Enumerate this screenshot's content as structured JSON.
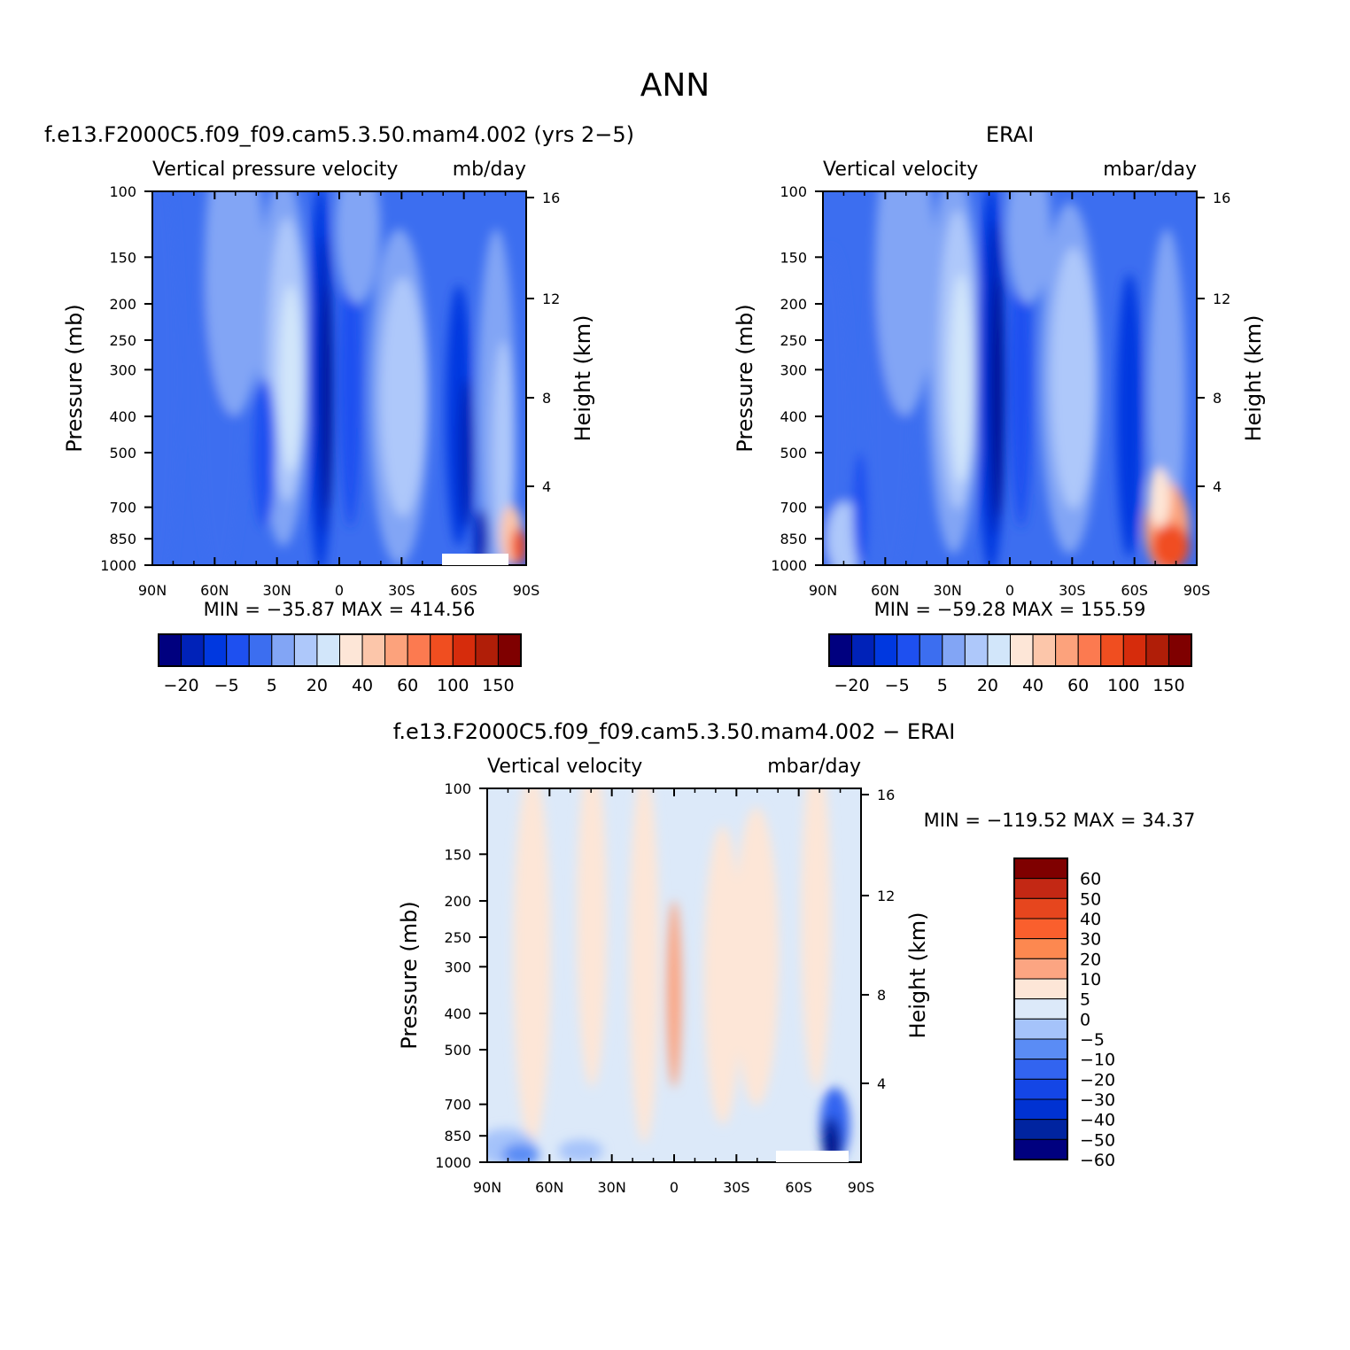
{
  "page": {
    "title": "ANN"
  },
  "colors": {
    "main_cmap": [
      "#00007f",
      "#0022b8",
      "#0038e0",
      "#1e50f0",
      "#3c6ef0",
      "#82a5f5",
      "#aec8fa",
      "#d2e6fa",
      "#fde6d7",
      "#fcc6aa",
      "#fca27c",
      "#fc7a50",
      "#f04e20",
      "#d62c0c",
      "#b01e08",
      "#7f0000"
    ],
    "diff_cmap": [
      "#00007f",
      "#0024a0",
      "#0032d2",
      "#1446e6",
      "#3264f0",
      "#5a8cf5",
      "#a5c3fa",
      "#dce9f9",
      "#fde6d7",
      "#fca582",
      "#fd8850",
      "#fa5f2d",
      "#e6461e",
      "#c32814",
      "#7f0000"
    ]
  },
  "panels": {
    "model": {
      "title": "f.e13.F2000C5.f09_f09.cam5.3.50.mam4.002 (yrs 2−5)",
      "variable": "Vertical pressure velocity",
      "units": "mb/day",
      "y_label": "Pressure (mb)",
      "right_label": "Height (km)",
      "stats": "MIN = −35.87   MAX = 414.56"
    },
    "obs": {
      "title": "ERAI",
      "variable": "Vertical velocity",
      "units": "mbar/day",
      "y_label": "Pressure (mb)",
      "right_label": "Height (km)",
      "stats": "MIN = −59.28   MAX = 155.59"
    },
    "diff": {
      "title": "f.e13.F2000C5.f09_f09.cam5.3.50.mam4.002 − ERAI",
      "variable": "Vertical velocity",
      "units": "mbar/day",
      "y_label": "Pressure (mb)",
      "right_label": "Height (km)",
      "stats": "MIN = −119.52   MAX =   34.37"
    }
  },
  "chart_data": [
    {
      "type": "heatmap",
      "title": "f.e13.F2000C5.f09_f09.cam5.3.50.mam4.002 (yrs 2−5)",
      "subtitle": "Vertical pressure velocity",
      "units": "mb/day",
      "xlabel": "",
      "ylabel": "Pressure (mb)",
      "y2label": "Height (km)",
      "x_ticks": [
        "90N",
        "60N",
        "30N",
        "0",
        "30S",
        "60S",
        "90S"
      ],
      "xlim": [
        90,
        -90
      ],
      "y_ticks": [
        100,
        150,
        200,
        250,
        300,
        400,
        500,
        700,
        850,
        1000
      ],
      "ylim": [
        1000,
        100
      ],
      "y_scale": "log",
      "y2_ticks": [
        4,
        8,
        12,
        16
      ],
      "min": -35.87,
      "max": 414.56,
      "colorbar_labels": [
        "−20",
        "−5",
        "5",
        "20",
        "40",
        "60",
        "100",
        "150"
      ]
    },
    {
      "type": "heatmap",
      "title": "ERAI",
      "subtitle": "Vertical velocity",
      "units": "mbar/day",
      "xlabel": "",
      "ylabel": "Pressure (mb)",
      "y2label": "Height (km)",
      "x_ticks": [
        "90N",
        "60N",
        "30N",
        "0",
        "30S",
        "60S",
        "90S"
      ],
      "xlim": [
        90,
        -90
      ],
      "y_ticks": [
        100,
        150,
        200,
        250,
        300,
        400,
        500,
        700,
        850,
        1000
      ],
      "ylim": [
        1000,
        100
      ],
      "y_scale": "log",
      "y2_ticks": [
        4,
        8,
        12,
        16
      ],
      "min": -59.28,
      "max": 155.59,
      "colorbar_labels": [
        "−20",
        "−5",
        "5",
        "20",
        "40",
        "60",
        "100",
        "150"
      ]
    },
    {
      "type": "heatmap",
      "title": "f.e13.F2000C5.f09_f09.cam5.3.50.mam4.002 − ERAI",
      "subtitle": "Vertical velocity",
      "units": "mbar/day",
      "xlabel": "",
      "ylabel": "Pressure (mb)",
      "y2label": "Height (km)",
      "x_ticks": [
        "90N",
        "60N",
        "30N",
        "0",
        "30S",
        "60S",
        "90S"
      ],
      "xlim": [
        90,
        -90
      ],
      "y_ticks": [
        100,
        150,
        200,
        250,
        300,
        400,
        500,
        700,
        850,
        1000
      ],
      "ylim": [
        1000,
        100
      ],
      "y_scale": "log",
      "y2_ticks": [
        4,
        8,
        12,
        16
      ],
      "min": -119.52,
      "max": 34.37,
      "colorbar_labels": [
        "60",
        "50",
        "40",
        "30",
        "20",
        "10",
        "5",
        "0",
        "−5",
        "−10",
        "−20",
        "−30",
        "−40",
        "−50",
        "−60"
      ]
    }
  ]
}
